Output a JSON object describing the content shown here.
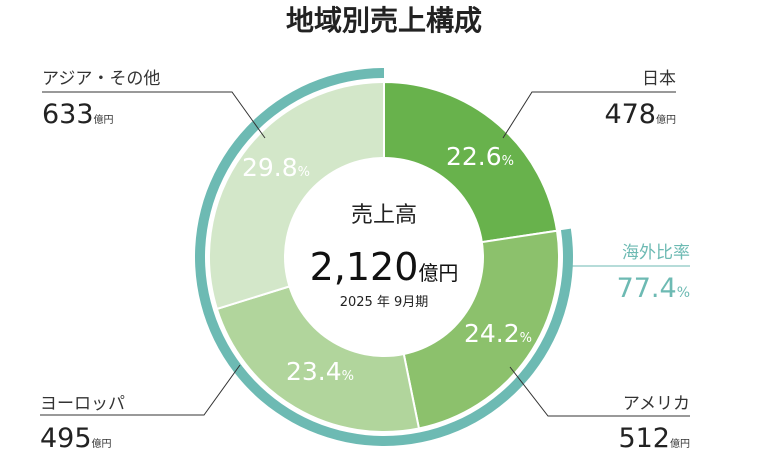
{
  "chart_data": {
    "type": "pie",
    "title": "地域別売上構成",
    "center": {
      "label": "売上高",
      "value": "2,120",
      "unit": "億円",
      "period": "2025 年 9月期"
    },
    "slices": [
      {
        "name": "日本",
        "value": 478,
        "unit": "億円",
        "percent": 22.6,
        "percent_label": "22.6",
        "color": "#68b24c"
      },
      {
        "name": "アメリカ",
        "value": 512,
        "unit": "億円",
        "percent": 24.2,
        "percent_label": "24.2",
        "color": "#8cc16c"
      },
      {
        "name": "ヨーロッパ",
        "value": 495,
        "unit": "億円",
        "percent": 23.4,
        "percent_label": "23.4",
        "color": "#b1d59c"
      },
      {
        "name": "アジア・その他",
        "value": 633,
        "unit": "億円",
        "percent": 29.8,
        "percent_label": "29.8",
        "color": "#d3e7c9"
      }
    ],
    "overseas": {
      "label": "海外比率",
      "percent": 77.4,
      "percent_label": "77.4",
      "color": "#6dbab3"
    },
    "percent_unit": "%"
  }
}
